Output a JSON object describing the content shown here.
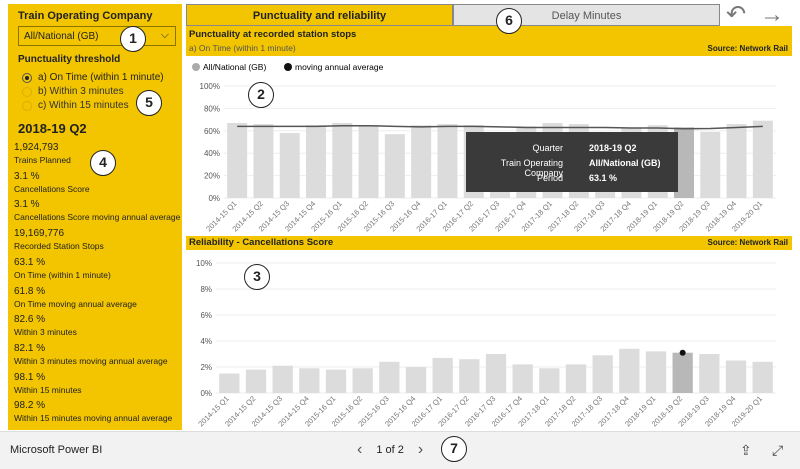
{
  "colors": {
    "brand_yellow": "#f2c500",
    "bar": "#dcdcdc",
    "bar_selected": "#b8b8b8",
    "line": "#555555",
    "tooltip_bg": "#3a3a3a"
  },
  "left": {
    "slicer_title": "Train Operating Company",
    "dropdown_value": "All/National (GB)",
    "threshold_title": "Punctuality threshold",
    "radios": [
      {
        "label": "a) On Time (within 1 minute)",
        "selected": true
      },
      {
        "label": "b) Within 3 minutes",
        "selected": false
      },
      {
        "label": "c) Within 15 minutes",
        "selected": false
      }
    ],
    "period": "2018-19 Q2",
    "stats": [
      {
        "value": "1,924,793",
        "label": "Trains Planned"
      },
      {
        "value": "3.1 %",
        "label": "Cancellations Score"
      },
      {
        "value": "3.1 %",
        "label": "Cancellations Score moving annual average"
      },
      {
        "value": "19,169,776",
        "label": "Recorded Station Stops"
      },
      {
        "value": "63.1 %",
        "label": "On Time (within 1 minute)"
      },
      {
        "value": "61.8 %",
        "label": "On Time moving annual average"
      },
      {
        "value": "82.6 %",
        "label": "Within 3 minutes"
      },
      {
        "value": "82.1 %",
        "label": "Within 3 minutes moving annual average"
      },
      {
        "value": "98.1 %",
        "label": "Within 15 minutes"
      },
      {
        "value": "98.2 %",
        "label": "Within 15 minutes moving annual average"
      }
    ]
  },
  "tabs": {
    "active": "Punctuality and reliability",
    "inactive": "Delay Minutes"
  },
  "nav": {
    "back": "↶",
    "forward": "→"
  },
  "top_chart": {
    "title": "Punctuality at recorded station stops",
    "subtitle": "a) On Time (within 1 minute)",
    "source": "Source: Network Rail",
    "legend": [
      "All/National (GB)",
      "moving annual average"
    ]
  },
  "bottom_chart": {
    "title": "Reliability - Cancellations Score",
    "source": "Source: Network Rail"
  },
  "tooltip": {
    "rows": [
      {
        "k": "Quarter",
        "v": "2018-19 Q2"
      },
      {
        "k": "Train Operating Company",
        "v": "All/National (GB)"
      },
      {
        "k": "Period",
        "v": "63.1 %"
      }
    ]
  },
  "callouts": [
    "1",
    "2",
    "3",
    "4",
    "5",
    "6",
    "7"
  ],
  "footer": {
    "brand": "Microsoft Power BI",
    "page": "1 of 2",
    "prev": "‹",
    "next": "›",
    "share_icon": "share-icon",
    "expand_icon": "expand-icon"
  },
  "chart_data": [
    {
      "type": "bar",
      "title": "Punctuality at recorded station stops",
      "categories": [
        "2014-15 Q1",
        "2014-15 Q2",
        "2014-15 Q3",
        "2014-15 Q4",
        "2015-16 Q1",
        "2015-16 Q2",
        "2015-16 Q3",
        "2015-16 Q4",
        "2016-17 Q1",
        "2016-17 Q2",
        "2016-17 Q3",
        "2016-17 Q4",
        "2017-18 Q1",
        "2017-18 Q2",
        "2017-18 Q3",
        "2017-18 Q4",
        "2018-19 Q1",
        "2018-19 Q2",
        "2018-19 Q3",
        "2018-19 Q4",
        "2019-20 Q1"
      ],
      "series": [
        {
          "name": "All/National (GB)",
          "values": [
            67,
            66,
            58,
            65,
            67,
            65,
            57,
            65,
            66,
            65,
            56,
            64,
            67,
            66,
            59,
            62,
            65,
            63.1,
            59,
            66,
            69
          ]
        },
        {
          "name": "moving annual average",
          "values": [
            64,
            64,
            64,
            64,
            64.5,
            64.5,
            64,
            63.5,
            64,
            64,
            63.5,
            63,
            63,
            63,
            63,
            62.5,
            62.5,
            61.8,
            62,
            63,
            64
          ]
        }
      ],
      "ylim": [
        0,
        100
      ],
      "yticks": [
        "0%",
        "20%",
        "40%",
        "60%",
        "80%",
        "100%"
      ],
      "selected": "2018-19 Q2"
    },
    {
      "type": "bar",
      "title": "Reliability - Cancellations Score",
      "categories": [
        "2014-15 Q1",
        "2014-15 Q2",
        "2014-15 Q3",
        "2014-15 Q4",
        "2015-16 Q1",
        "2015-16 Q2",
        "2015-16 Q3",
        "2015-16 Q4",
        "2016-17 Q1",
        "2016-17 Q2",
        "2016-17 Q3",
        "2016-17 Q4",
        "2017-18 Q1",
        "2017-18 Q2",
        "2017-18 Q3",
        "2017-18 Q4",
        "2018-19 Q1",
        "2018-19 Q2",
        "2018-19 Q3",
        "2018-19 Q4",
        "2019-20 Q1"
      ],
      "series": [
        {
          "values": [
            1.5,
            1.8,
            2.1,
            1.9,
            1.8,
            1.9,
            2.4,
            2.0,
            2.7,
            2.6,
            3.0,
            2.2,
            1.9,
            2.2,
            2.9,
            3.4,
            3.2,
            3.1,
            3.0,
            2.5,
            2.4
          ]
        },
        {
          "values": [
            null,
            null,
            null,
            null,
            null,
            null,
            null,
            null,
            null,
            null,
            null,
            null,
            null,
            null,
            null,
            null,
            null,
            3.1,
            null,
            null,
            null
          ]
        }
      ],
      "ylim": [
        0,
        10
      ],
      "yticks": [
        "0%",
        "2%",
        "4%",
        "6%",
        "8%",
        "10%"
      ],
      "selected": "2018-19 Q2"
    }
  ]
}
